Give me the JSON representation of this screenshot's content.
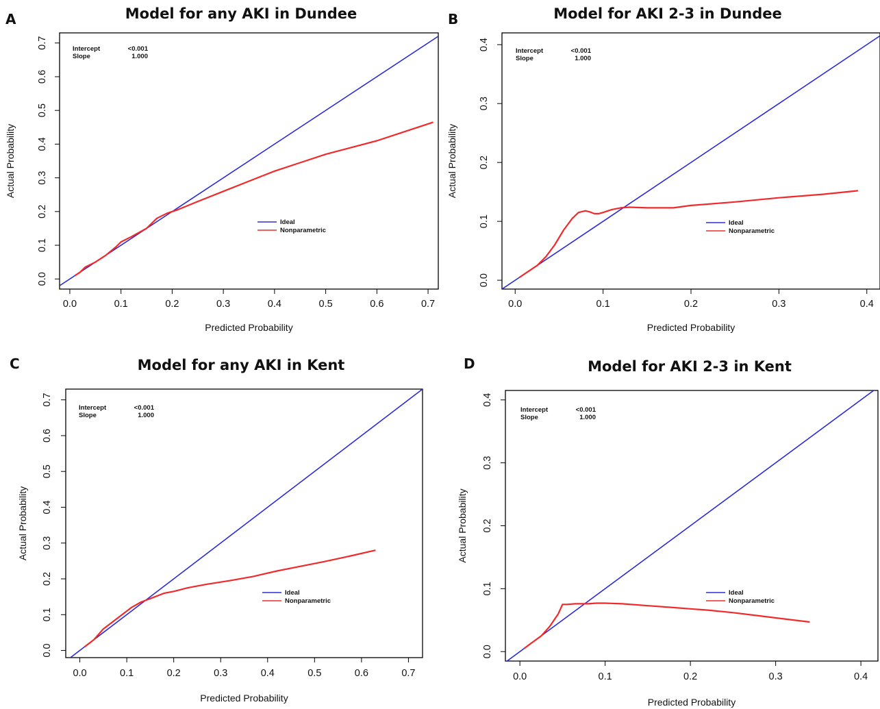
{
  "chart_data": [
    {
      "panel": "A",
      "type": "line",
      "title": "Model for any AKI in Dundee",
      "xlabel": "Predicted Probability",
      "ylabel": "Actual Probability",
      "xlim": [
        -0.02,
        0.72
      ],
      "ylim": [
        -0.03,
        0.73
      ],
      "xticks": [
        0.0,
        0.1,
        0.2,
        0.3,
        0.4,
        0.5,
        0.6,
        0.7
      ],
      "xtick_labels": [
        "0.0",
        "0.1",
        "0.2",
        "0.3",
        "0.4",
        "0.5",
        "0.6",
        "0.7"
      ],
      "yticks": [
        0.0,
        0.1,
        0.2,
        0.3,
        0.4,
        0.5,
        0.6,
        0.7
      ],
      "ytick_labels": [
        "0.0",
        "0.1",
        "0.2",
        "0.3",
        "0.4",
        "0.5",
        "0.6",
        "0.7"
      ],
      "stats": [
        {
          "label": "Intercept",
          "value": "<0.001"
        },
        {
          "label": "Slope",
          "value": "1.000"
        }
      ],
      "legend": {
        "position": "center-right",
        "entries": [
          "Ideal",
          "Nonparametric"
        ]
      },
      "series": [
        {
          "name": "Ideal",
          "color": "#2b2bd9",
          "x": [
            -0.02,
            0.72
          ],
          "y": [
            -0.02,
            0.72
          ]
        },
        {
          "name": "Nonparametric",
          "color": "#f02a2a",
          "x": [
            0.01,
            0.02,
            0.03,
            0.05,
            0.07,
            0.09,
            0.1,
            0.12,
            0.15,
            0.17,
            0.19,
            0.21,
            0.25,
            0.3,
            0.35,
            0.4,
            0.45,
            0.5,
            0.55,
            0.6,
            0.65,
            0.71
          ],
          "y": [
            0.01,
            0.02,
            0.035,
            0.05,
            0.07,
            0.095,
            0.11,
            0.125,
            0.15,
            0.18,
            0.195,
            0.205,
            0.23,
            0.26,
            0.29,
            0.32,
            0.345,
            0.37,
            0.39,
            0.41,
            0.435,
            0.465
          ]
        }
      ]
    },
    {
      "panel": "B",
      "type": "line",
      "title": "Model for AKI 2-3 in Dundee",
      "xlabel": "Predicted Probability",
      "ylabel": "Actual Probability",
      "xlim": [
        -0.015,
        0.415
      ],
      "ylim": [
        -0.015,
        0.42
      ],
      "xticks": [
        0.0,
        0.1,
        0.2,
        0.3,
        0.4
      ],
      "xtick_labels": [
        "0.0",
        "0.1",
        "0.2",
        "0.3",
        "0.4"
      ],
      "yticks": [
        0.0,
        0.1,
        0.2,
        0.3,
        0.4
      ],
      "ytick_labels": [
        "0.0",
        "0.1",
        "0.2",
        "0.3",
        "0.4"
      ],
      "stats": [
        {
          "label": "Intercept",
          "value": "<0.001"
        },
        {
          "label": "Slope",
          "value": "1.000"
        }
      ],
      "legend": {
        "position": "center-right",
        "entries": [
          "Ideal",
          "Nonparametric"
        ]
      },
      "series": [
        {
          "name": "Ideal",
          "color": "#2b2bd9",
          "x": [
            -0.015,
            0.415
          ],
          "y": [
            -0.015,
            0.415
          ]
        },
        {
          "name": "Nonparametric",
          "color": "#f02a2a",
          "x": [
            0.005,
            0.015,
            0.025,
            0.035,
            0.045,
            0.055,
            0.065,
            0.072,
            0.08,
            0.085,
            0.09,
            0.095,
            0.1,
            0.11,
            0.12,
            0.13,
            0.15,
            0.18,
            0.2,
            0.25,
            0.3,
            0.35,
            0.39
          ],
          "y": [
            0.005,
            0.015,
            0.025,
            0.04,
            0.06,
            0.085,
            0.105,
            0.115,
            0.118,
            0.116,
            0.113,
            0.113,
            0.115,
            0.12,
            0.123,
            0.124,
            0.123,
            0.123,
            0.127,
            0.133,
            0.14,
            0.146,
            0.152
          ]
        }
      ]
    },
    {
      "panel": "C",
      "type": "line",
      "title": "Model for any AKI in Kent",
      "xlabel": "Predicted Probability",
      "ylabel": "Actual Probability",
      "xlim": [
        -0.03,
        0.73
      ],
      "ylim": [
        -0.02,
        0.73
      ],
      "xticks": [
        0.0,
        0.1,
        0.2,
        0.3,
        0.4,
        0.5,
        0.6,
        0.7
      ],
      "xtick_labels": [
        "0.0",
        "0.1",
        "0.2",
        "0.3",
        "0.4",
        "0.5",
        "0.6",
        "0.7"
      ],
      "yticks": [
        0.0,
        0.1,
        0.2,
        0.3,
        0.4,
        0.5,
        0.6,
        0.7
      ],
      "ytick_labels": [
        "0.0",
        "0.1",
        "0.2",
        "0.3",
        "0.4",
        "0.5",
        "0.6",
        "0.7"
      ],
      "stats": [
        {
          "label": "Intercept",
          "value": "<0.001"
        },
        {
          "label": "Slope",
          "value": "1.000"
        }
      ],
      "legend": {
        "position": "center-right",
        "entries": [
          "Ideal",
          "Nonparametric"
        ]
      },
      "series": [
        {
          "name": "Ideal",
          "color": "#2b2bd9",
          "x": [
            -0.03,
            0.73
          ],
          "y": [
            -0.03,
            0.73
          ]
        },
        {
          "name": "Nonparametric",
          "color": "#f02a2a",
          "x": [
            0.01,
            0.03,
            0.05,
            0.07,
            0.09,
            0.11,
            0.13,
            0.15,
            0.18,
            0.2,
            0.23,
            0.27,
            0.32,
            0.37,
            0.42,
            0.47,
            0.52,
            0.57,
            0.63
          ],
          "y": [
            0.01,
            0.03,
            0.06,
            0.08,
            0.1,
            0.12,
            0.135,
            0.145,
            0.16,
            0.165,
            0.175,
            0.185,
            0.195,
            0.207,
            0.222,
            0.235,
            0.248,
            0.262,
            0.28
          ]
        }
      ]
    },
    {
      "panel": "D",
      "type": "line",
      "title": "Model for AKI 2-3 in Kent",
      "xlabel": "Predicted Probability",
      "ylabel": "Actual Probability",
      "xlim": [
        -0.017,
        0.42
      ],
      "ylim": [
        -0.015,
        0.415
      ],
      "xticks": [
        0.0,
        0.1,
        0.2,
        0.3,
        0.4
      ],
      "xtick_labels": [
        "0.0",
        "0.1",
        "0.2",
        "0.3",
        "0.4"
      ],
      "yticks": [
        0.0,
        0.1,
        0.2,
        0.3,
        0.4
      ],
      "ytick_labels": [
        "0.0",
        "0.1",
        "0.2",
        "0.3",
        "0.4"
      ],
      "stats": [
        {
          "label": "Intercept",
          "value": "<0.001"
        },
        {
          "label": "Slope",
          "value": "1.000"
        }
      ],
      "legend": {
        "position": "center-right",
        "entries": [
          "Ideal",
          "Nonparametric"
        ]
      },
      "series": [
        {
          "name": "Ideal",
          "color": "#2b2bd9",
          "x": [
            -0.017,
            0.42
          ],
          "y": [
            -0.017,
            0.42
          ]
        },
        {
          "name": "Nonparametric",
          "color": "#f02a2a",
          "x": [
            0.005,
            0.015,
            0.025,
            0.035,
            0.045,
            0.05,
            0.055,
            0.065,
            0.08,
            0.09,
            0.1,
            0.12,
            0.15,
            0.18,
            0.2,
            0.22,
            0.25,
            0.28,
            0.31,
            0.34
          ],
          "y": [
            0.005,
            0.015,
            0.025,
            0.04,
            0.06,
            0.075,
            0.075,
            0.076,
            0.076,
            0.077,
            0.077,
            0.076,
            0.073,
            0.07,
            0.068,
            0.066,
            0.062,
            0.057,
            0.052,
            0.047
          ]
        }
      ]
    }
  ]
}
